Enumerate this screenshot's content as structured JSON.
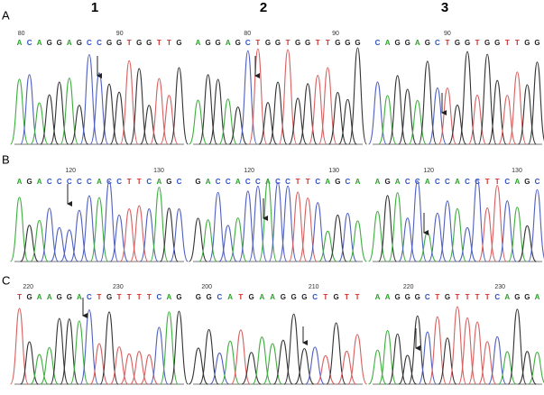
{
  "columns": [
    "1",
    "2",
    "3"
  ],
  "rows": [
    {
      "label": "A",
      "panels": [
        {
          "positions": [
            "80",
            "90"
          ],
          "bases": [
            "A",
            "C",
            "A",
            "G",
            "G",
            "A",
            "G",
            "C",
            "C",
            "G",
            "G",
            "T",
            "G",
            "G",
            "T",
            "T",
            "G"
          ]
        },
        {
          "positions": [
            "80",
            "90"
          ],
          "bases": [
            "A",
            "G",
            "G",
            "A",
            "G",
            "C",
            "T",
            "G",
            "G",
            "T",
            "G",
            "G",
            "T",
            "T",
            "G",
            "G",
            "G"
          ]
        },
        {
          "positions": [
            "90"
          ],
          "bases": [
            "C",
            "A",
            "G",
            "G",
            "A",
            "G",
            "C",
            "T",
            "G",
            "G",
            "T",
            "G",
            "G",
            "T",
            "T",
            "G",
            "G"
          ]
        }
      ]
    },
    {
      "label": "B",
      "panels": [
        {
          "positions": [
            "120",
            "130"
          ],
          "bases": [
            "A",
            "G",
            "A",
            "C",
            "C",
            "C",
            "C",
            "C",
            "A",
            "C",
            "C",
            "T",
            "T",
            "C",
            "A",
            "G",
            "C"
          ]
        },
        {
          "positions": [
            "120",
            "130"
          ],
          "bases": [
            "G",
            "A",
            "C",
            "C",
            "A",
            "C",
            "C",
            "A",
            "C",
            "C",
            "T",
            "T",
            "C",
            "A",
            "G",
            "C",
            "A"
          ]
        },
        {
          "positions": [
            "120",
            "130"
          ],
          "bases": [
            "A",
            "G",
            "A",
            "C",
            "C",
            "A",
            "C",
            "C",
            "A",
            "C",
            "C",
            "T",
            "T",
            "C",
            "A",
            "G",
            "C"
          ]
        }
      ]
    },
    {
      "label": "C",
      "panels": [
        {
          "positions": [
            "220",
            "230"
          ],
          "bases": [
            "T",
            "G",
            "A",
            "A",
            "G",
            "G",
            "A",
            "C",
            "T",
            "G",
            "T",
            "T",
            "T",
            "T",
            "C",
            "A",
            "G"
          ]
        },
        {
          "positions": [
            "200",
            "210"
          ],
          "bases": [
            "G",
            "G",
            "C",
            "A",
            "T",
            "G",
            "A",
            "A",
            "G",
            "G",
            "G",
            "C",
            "T",
            "G",
            "T",
            "T"
          ]
        },
        {
          "positions": [
            "220",
            "230"
          ],
          "bases": [
            "A",
            "A",
            "G",
            "G",
            "G",
            "C",
            "T",
            "G",
            "T",
            "T",
            "T",
            "T",
            "C",
            "A",
            "G",
            "G",
            "A"
          ]
        }
      ]
    }
  ]
}
